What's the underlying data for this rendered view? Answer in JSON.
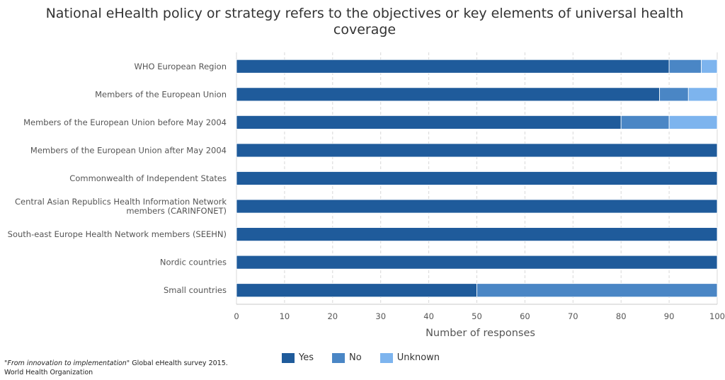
{
  "chart_data": {
    "type": "bar",
    "orientation": "horizontal",
    "stacked": true,
    "title": "National eHealth policy or strategy refers to the objectives or key elements of universal health coverage",
    "xlabel": "Number of responses",
    "ylabel": "",
    "xlim": [
      0,
      100
    ],
    "xticks": [
      0,
      10,
      20,
      30,
      40,
      50,
      60,
      70,
      80,
      90,
      100
    ],
    "grid": true,
    "legend_position": "bottom",
    "categories": [
      [
        "WHO European Region"
      ],
      [
        "Members of the European Union"
      ],
      [
        "Members of the European Union before May 2004"
      ],
      [
        "Members of the European Union after May 2004"
      ],
      [
        "Commonwealth of Independent States"
      ],
      [
        "Central Asian Republics Health Information Network",
        "members (CARINFONET)"
      ],
      [
        "South-east Europe Health Network members (SEEHN)"
      ],
      [
        "Nordic countries"
      ],
      [
        "Small countries"
      ]
    ],
    "series": [
      {
        "name": "Yes",
        "color": "#1f5b9b",
        "values": [
          90,
          88,
          80,
          100,
          100,
          100,
          100,
          100,
          50
        ]
      },
      {
        "name": "No",
        "color": "#4a86c5",
        "values": [
          6.7,
          6,
          10,
          0,
          0,
          0,
          0,
          0,
          50
        ]
      },
      {
        "name": "Unknown",
        "color": "#7db4ee",
        "values": [
          3.3,
          6,
          10,
          0,
          0,
          0,
          0,
          0,
          0
        ]
      }
    ]
  },
  "source": {
    "italic_part": "\"From innovation to implementation\"",
    "rest": " Global eHealth survey 2015.",
    "org": "World Health Organization"
  }
}
